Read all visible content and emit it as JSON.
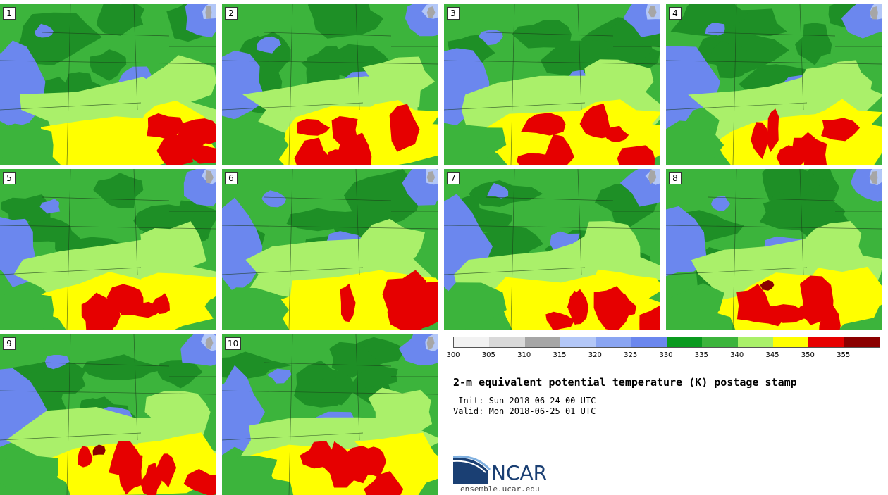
{
  "title": "2-m equivalent potential temperature (K) postage stamp",
  "init": " Init: Sun 2018-06-24 00 UTC",
  "valid": "Valid: Mon 2018-06-25 01 UTC",
  "members": [
    {
      "label": "1"
    },
    {
      "label": "2"
    },
    {
      "label": "3"
    },
    {
      "label": "4"
    },
    {
      "label": "5"
    },
    {
      "label": "6"
    },
    {
      "label": "7"
    },
    {
      "label": "8"
    },
    {
      "label": "9"
    },
    {
      "label": "10"
    }
  ],
  "colorbar": {
    "colors": [
      "#f2f2f2",
      "#d9d9d9",
      "#a6a6a6",
      "#b3c7f7",
      "#8aa5f2",
      "#6b87ee",
      "#0a9a1f",
      "#3cb43c",
      "#aaf06a",
      "#ffff00",
      "#e60000",
      "#8b0000"
    ],
    "ticks": [
      "300",
      "305",
      "310",
      "315",
      "320",
      "325",
      "330",
      "335",
      "340",
      "345",
      "350",
      "355"
    ]
  },
  "palette": {
    "dark_green": "#1e8f26",
    "mid_green": "#3cb43c",
    "light_green": "#aaf06a",
    "blue": "#6b87ee",
    "light_blue": "#b3c7f7",
    "yellow": "#ffff00",
    "red": "#e60000",
    "dark_red": "#8b0000",
    "gray": "#a6a6a6"
  },
  "logo": {
    "name": "NCAR",
    "url": "ensemble.ucar.edu"
  }
}
